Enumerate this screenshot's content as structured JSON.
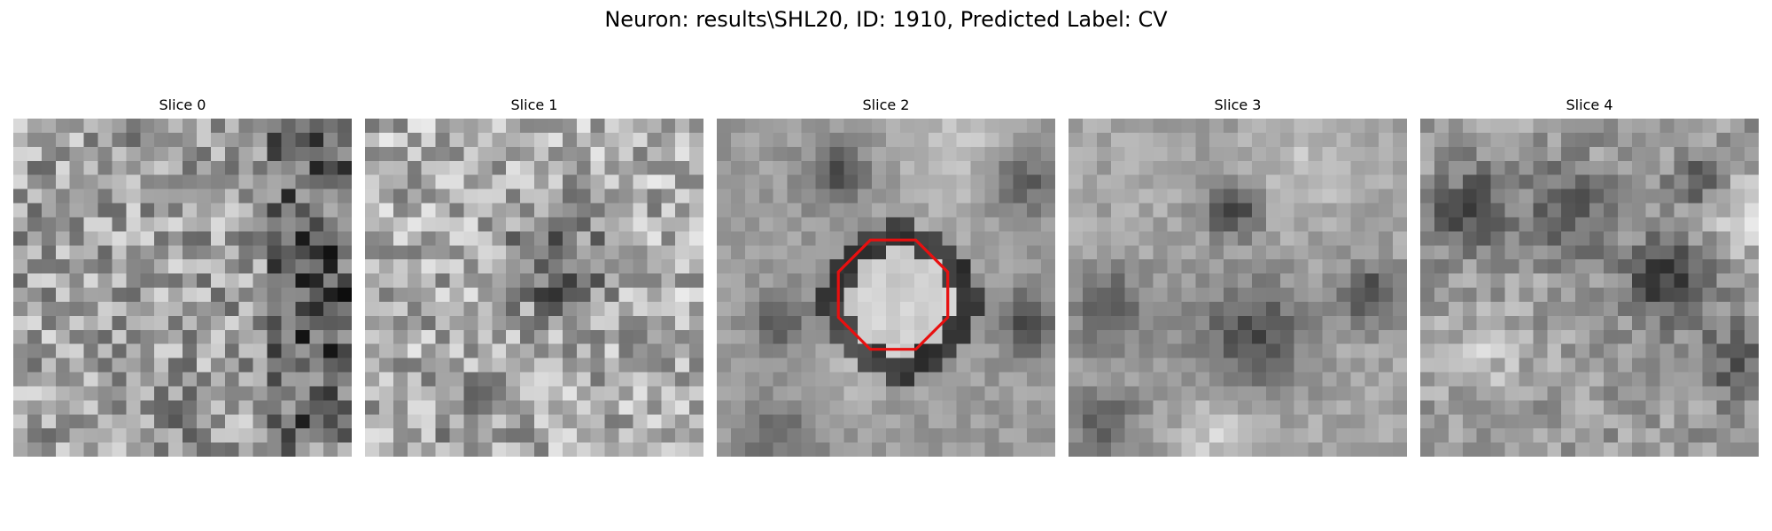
{
  "figure": {
    "title": "Neuron: results\\SHL20, ID: 1910, Predicted Label: CV"
  },
  "panels": [
    {
      "title": "Slice 0"
    },
    {
      "title": "Slice 1"
    },
    {
      "title": "Slice 2"
    },
    {
      "title": "Slice 3"
    },
    {
      "title": "Slice 4"
    }
  ],
  "colors": {
    "outline": "#e81010",
    "colormap": "grayscale"
  }
}
